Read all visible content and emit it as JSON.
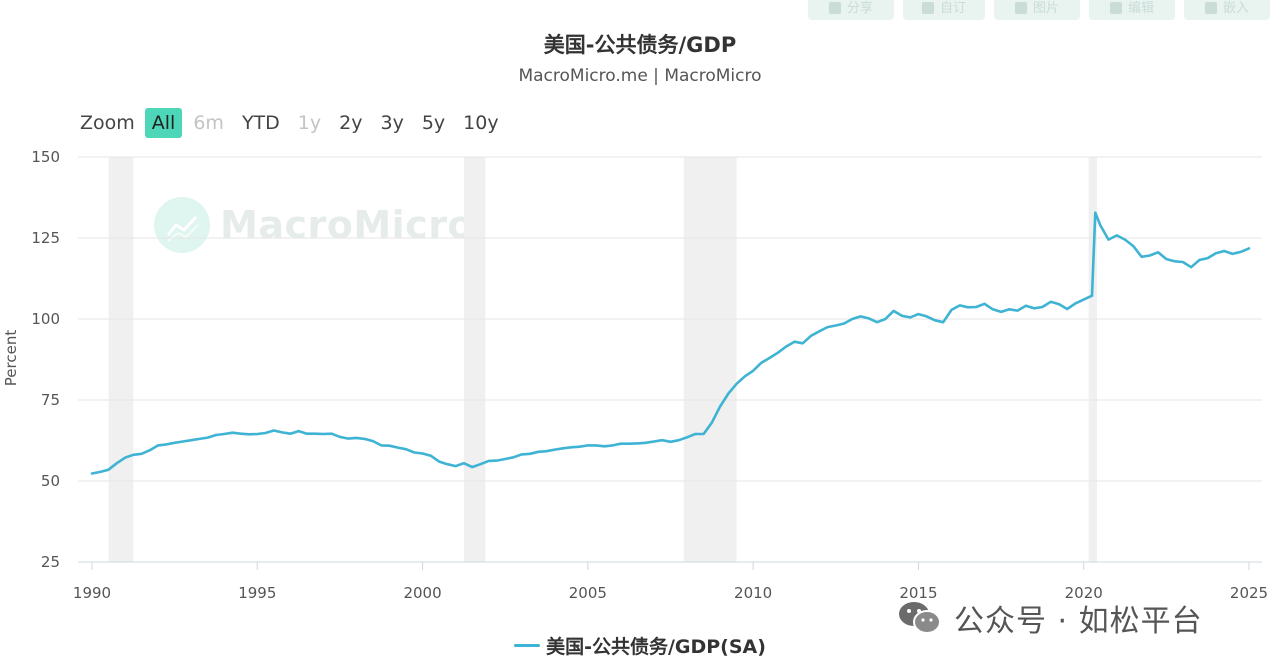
{
  "header": {
    "title": "美国-公共债务/GDP",
    "subtitle": "MacroMicro.me | MacroMicro"
  },
  "toolbar": [
    {
      "name": "share-button",
      "label": "分享"
    },
    {
      "name": "custom-button",
      "label": "自订"
    },
    {
      "name": "image-button",
      "label": "图片"
    },
    {
      "name": "edit-button",
      "label": "编辑"
    },
    {
      "name": "embed-button",
      "label": "嵌入"
    }
  ],
  "zoom": {
    "label": "Zoom",
    "options": [
      {
        "label": "All",
        "state": "active"
      },
      {
        "label": "6m",
        "state": "disabled"
      },
      {
        "label": "YTD",
        "state": "normal"
      },
      {
        "label": "1y",
        "state": "disabled"
      },
      {
        "label": "2y",
        "state": "normal"
      },
      {
        "label": "3y",
        "state": "normal"
      },
      {
        "label": "5y",
        "state": "normal"
      },
      {
        "label": "10y",
        "state": "normal"
      }
    ]
  },
  "watermark": "MacroMicro",
  "wechat_badge": "公众号 · 如松平台",
  "colors": {
    "series": "#3fb3d3",
    "zoom_active": "#4dd6b8",
    "recession": "#f0f0f0",
    "grid": "#e6e6e6"
  },
  "chart_data": {
    "type": "line",
    "title": "美国-公共债务/GDP",
    "subtitle": "MacroMicro.me | MacroMicro",
    "xlabel": "",
    "ylabel": "Percent",
    "xlim": [
      1990,
      2025
    ],
    "ylim": [
      25,
      150
    ],
    "x_ticks": [
      "1990",
      "1995",
      "2000",
      "2005",
      "2010",
      "2015",
      "2020",
      "2025"
    ],
    "y_ticks": [
      25,
      50,
      75,
      100,
      125,
      150
    ],
    "grid": true,
    "legend": "bottom-center",
    "recession_bands": [
      [
        1990.5,
        1991.25
      ],
      [
        2001.25,
        2001.9
      ],
      [
        2007.9,
        2009.5
      ],
      [
        2020.15,
        2020.4
      ]
    ],
    "series": [
      {
        "name": "美国-公共债务/GDP(SA)",
        "points": [
          [
            1990.0,
            52.3
          ],
          [
            1990.25,
            52.8
          ],
          [
            1990.5,
            53.5
          ],
          [
            1990.75,
            55.5
          ],
          [
            1991.0,
            57.2
          ],
          [
            1991.25,
            58.1
          ],
          [
            1991.5,
            58.4
          ],
          [
            1991.75,
            59.5
          ],
          [
            1992.0,
            61.0
          ],
          [
            1992.25,
            61.3
          ],
          [
            1992.5,
            61.8
          ],
          [
            1992.75,
            62.2
          ],
          [
            1993.0,
            62.6
          ],
          [
            1993.25,
            63.0
          ],
          [
            1993.5,
            63.4
          ],
          [
            1993.75,
            64.2
          ],
          [
            1994.0,
            64.5
          ],
          [
            1994.25,
            64.9
          ],
          [
            1994.5,
            64.6
          ],
          [
            1994.75,
            64.4
          ],
          [
            1995.0,
            64.5
          ],
          [
            1995.25,
            64.8
          ],
          [
            1995.5,
            65.6
          ],
          [
            1995.75,
            65.0
          ],
          [
            1996.0,
            64.6
          ],
          [
            1996.25,
            65.4
          ],
          [
            1996.5,
            64.6
          ],
          [
            1996.75,
            64.6
          ],
          [
            1997.0,
            64.5
          ],
          [
            1997.25,
            64.6
          ],
          [
            1997.5,
            63.6
          ],
          [
            1997.75,
            63.1
          ],
          [
            1998.0,
            63.3
          ],
          [
            1998.25,
            63.0
          ],
          [
            1998.5,
            62.3
          ],
          [
            1998.75,
            61.0
          ],
          [
            1999.0,
            60.9
          ],
          [
            1999.25,
            60.3
          ],
          [
            1999.5,
            59.8
          ],
          [
            1999.75,
            58.8
          ],
          [
            2000.0,
            58.5
          ],
          [
            2000.25,
            57.8
          ],
          [
            2000.5,
            56.0
          ],
          [
            2000.75,
            55.2
          ],
          [
            2001.0,
            54.6
          ],
          [
            2001.25,
            55.5
          ],
          [
            2001.5,
            54.3
          ],
          [
            2001.75,
            55.2
          ],
          [
            2002.0,
            56.2
          ],
          [
            2002.25,
            56.3
          ],
          [
            2002.5,
            56.8
          ],
          [
            2002.75,
            57.3
          ],
          [
            2003.0,
            58.2
          ],
          [
            2003.25,
            58.4
          ],
          [
            2003.5,
            59.0
          ],
          [
            2003.75,
            59.2
          ],
          [
            2004.0,
            59.7
          ],
          [
            2004.25,
            60.1
          ],
          [
            2004.5,
            60.4
          ],
          [
            2004.75,
            60.6
          ],
          [
            2005.0,
            61.0
          ],
          [
            2005.25,
            61.0
          ],
          [
            2005.5,
            60.7
          ],
          [
            2005.75,
            61.0
          ],
          [
            2006.0,
            61.5
          ],
          [
            2006.25,
            61.5
          ],
          [
            2006.5,
            61.6
          ],
          [
            2006.75,
            61.8
          ],
          [
            2007.0,
            62.2
          ],
          [
            2007.25,
            62.6
          ],
          [
            2007.5,
            62.1
          ],
          [
            2007.75,
            62.6
          ],
          [
            2008.0,
            63.5
          ],
          [
            2008.25,
            64.5
          ],
          [
            2008.5,
            64.5
          ],
          [
            2008.75,
            68.0
          ],
          [
            2009.0,
            73.0
          ],
          [
            2009.25,
            77.0
          ],
          [
            2009.5,
            80.0
          ],
          [
            2009.75,
            82.3
          ],
          [
            2010.0,
            84.0
          ],
          [
            2010.25,
            86.5
          ],
          [
            2010.5,
            88.0
          ],
          [
            2010.75,
            89.6
          ],
          [
            2011.0,
            91.5
          ],
          [
            2011.25,
            93.0
          ],
          [
            2011.5,
            92.5
          ],
          [
            2011.75,
            94.8
          ],
          [
            2012.0,
            96.2
          ],
          [
            2012.25,
            97.5
          ],
          [
            2012.5,
            98.0
          ],
          [
            2012.75,
            98.6
          ],
          [
            2013.0,
            100.0
          ],
          [
            2013.25,
            100.8
          ],
          [
            2013.5,
            100.2
          ],
          [
            2013.75,
            99.0
          ],
          [
            2014.0,
            100.0
          ],
          [
            2014.25,
            102.5
          ],
          [
            2014.5,
            101.0
          ],
          [
            2014.75,
            100.5
          ],
          [
            2015.0,
            101.5
          ],
          [
            2015.25,
            100.8
          ],
          [
            2015.5,
            99.6
          ],
          [
            2015.75,
            99.0
          ],
          [
            2016.0,
            102.8
          ],
          [
            2016.25,
            104.2
          ],
          [
            2016.5,
            103.6
          ],
          [
            2016.75,
            103.7
          ],
          [
            2017.0,
            104.7
          ],
          [
            2017.25,
            103.0
          ],
          [
            2017.5,
            102.2
          ],
          [
            2017.75,
            103.0
          ],
          [
            2018.0,
            102.6
          ],
          [
            2018.25,
            104.1
          ],
          [
            2018.5,
            103.3
          ],
          [
            2018.75,
            103.7
          ],
          [
            2019.0,
            105.3
          ],
          [
            2019.25,
            104.6
          ],
          [
            2019.5,
            103.1
          ],
          [
            2019.75,
            104.8
          ],
          [
            2020.0,
            106.0
          ],
          [
            2020.25,
            107.2
          ],
          [
            2020.35,
            132.8
          ],
          [
            2020.5,
            129.0
          ],
          [
            2020.75,
            124.5
          ],
          [
            2021.0,
            125.8
          ],
          [
            2021.25,
            124.5
          ],
          [
            2021.5,
            122.5
          ],
          [
            2021.75,
            119.2
          ],
          [
            2022.0,
            119.6
          ],
          [
            2022.25,
            120.6
          ],
          [
            2022.5,
            118.5
          ],
          [
            2022.75,
            117.8
          ],
          [
            2023.0,
            117.6
          ],
          [
            2023.25,
            116.0
          ],
          [
            2023.5,
            118.2
          ],
          [
            2023.75,
            118.8
          ],
          [
            2024.0,
            120.3
          ],
          [
            2024.25,
            121.0
          ],
          [
            2024.5,
            120.1
          ],
          [
            2024.75,
            120.7
          ],
          [
            2025.0,
            121.8
          ]
        ]
      }
    ]
  }
}
